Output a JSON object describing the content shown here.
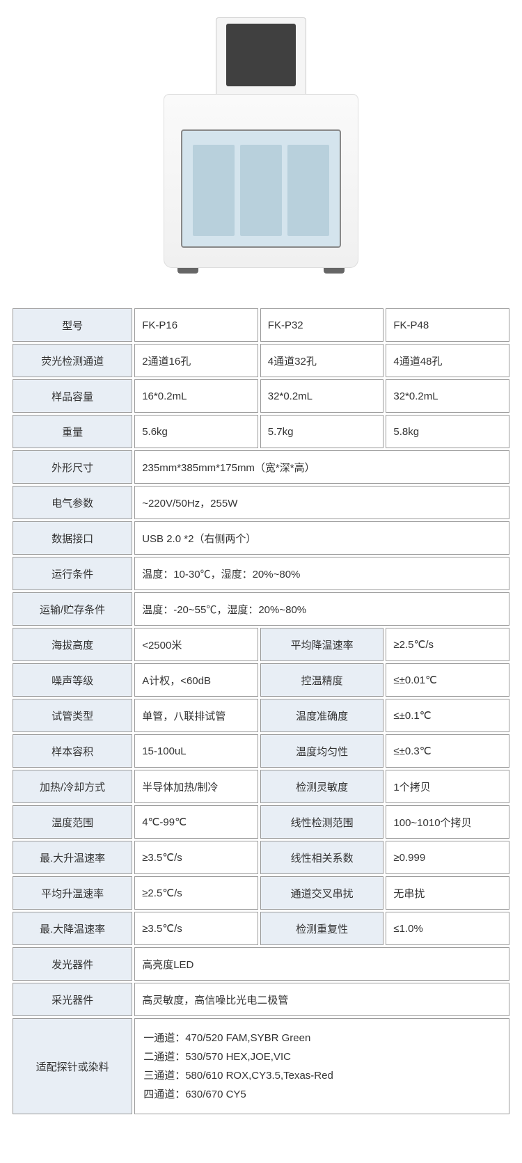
{
  "colors": {
    "label_bg": "#e8eef5",
    "value_bg": "#ffffff",
    "border": "#999999",
    "text": "#333333"
  },
  "table": {
    "r1": {
      "label": "型号",
      "v1": "FK-P16",
      "v2": "FK-P32",
      "v3": "FK-P48"
    },
    "r2": {
      "label": "荧光检测通道",
      "v1": "2通道16孔",
      "v2": "4通道32孔",
      "v3": "4通道48孔"
    },
    "r3": {
      "label": "样品容量",
      "v1": "16*0.2mL",
      "v2": "32*0.2mL",
      "v3": "32*0.2mL"
    },
    "r4": {
      "label": "重量",
      "v1": "5.6kg",
      "v2": "5.7kg",
      "v3": "5.8kg"
    },
    "r5": {
      "label": "外形尺寸",
      "v": "235mm*385mm*175mm（宽*深*高）"
    },
    "r6": {
      "label": "电气参数",
      "v": "~220V/50Hz，255W"
    },
    "r7": {
      "label": "数据接口",
      "v": "USB 2.0 *2（右侧两个）"
    },
    "r8": {
      "label": "运行条件",
      "v": "温度：10-30℃，湿度：20%~80%"
    },
    "r9": {
      "label": "运输/贮存条件",
      "v": "温度：-20~55℃，湿度：20%~80%"
    },
    "r10": {
      "label1": "海拔高度",
      "v1": "<2500米",
      "label2": "平均降温速率",
      "v2": "≥2.5℃/s"
    },
    "r11": {
      "label1": "噪声等级",
      "v1": "A计权，<60dB",
      "label2": "控温精度",
      "v2": "≤±0.01℃"
    },
    "r12": {
      "label1": "试管类型",
      "v1": "单管，八联排试管",
      "label2": "温度准确度",
      "v2": "≤±0.1℃"
    },
    "r13": {
      "label1": "样本容积",
      "v1": "15-100uL",
      "label2": "温度均匀性",
      "v2": "≤±0.3℃"
    },
    "r14": {
      "label1": "加热/冷却方式",
      "v1": "半导体加热/制冷",
      "label2": "检测灵敏度",
      "v2": "1个拷贝"
    },
    "r15": {
      "label1": "温度范围",
      "v1": "4℃-99℃",
      "label2": "线性检测范围",
      "v2": "100~1010个拷贝"
    },
    "r16": {
      "label1": "最.大升温速率",
      "v1": "≥3.5℃/s",
      "label2": "线性相关系数",
      "v2": "≥0.999"
    },
    "r17": {
      "label1": "平均升温速率",
      "v1": "≥2.5℃/s",
      "label2": "通道交叉串扰",
      "v2": "无串扰"
    },
    "r18": {
      "label1": "最.大降温速率",
      "v1": "≥3.5℃/s",
      "label2": "检测重复性",
      "v2": "≤1.0%"
    },
    "r19": {
      "label": "发光器件",
      "v": "高亮度LED"
    },
    "r20": {
      "label": "采光器件",
      "v": "高灵敏度，高信噪比光电二极管"
    },
    "r21": {
      "label": "适配探针或染料",
      "line1": "一通道：470/520   FAM,SYBR Green",
      "line2": "二通道：530/570   HEX,JOE,VIC",
      "line3": "三通道：580/610   ROX,CY3.5,Texas-Red",
      "line4": "四通道：630/670   CY5"
    }
  }
}
